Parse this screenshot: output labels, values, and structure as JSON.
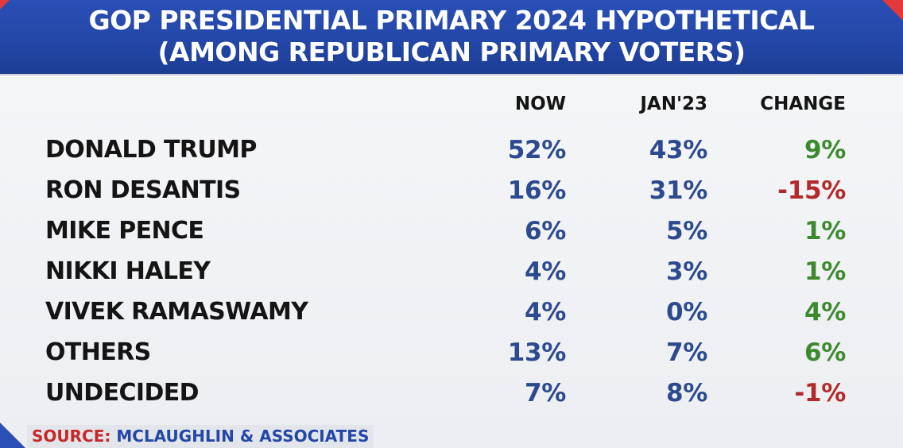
{
  "chart_data": {
    "type": "table",
    "title_line1": "GOP PRESIDENTIAL PRIMARY 2024 HYPOTHETICAL",
    "title_line2": "(AMONG REPUBLICAN PRIMARY VOTERS)",
    "columns": [
      "NOW",
      "JAN'23",
      "CHANGE"
    ],
    "rows": [
      {
        "name": "DONALD TRUMP",
        "now": "52%",
        "jan": "43%",
        "change": "9%",
        "now_value": 52,
        "jan_value": 43,
        "change_value": 9
      },
      {
        "name": "RON DESANTIS",
        "now": "16%",
        "jan": "31%",
        "change": "-15%",
        "now_value": 16,
        "jan_value": 31,
        "change_value": -15
      },
      {
        "name": "MIKE PENCE",
        "now": "6%",
        "jan": "5%",
        "change": "1%",
        "now_value": 6,
        "jan_value": 5,
        "change_value": 1
      },
      {
        "name": "NIKKI HALEY",
        "now": "4%",
        "jan": "3%",
        "change": "1%",
        "now_value": 4,
        "jan_value": 3,
        "change_value": 1
      },
      {
        "name": "VIVEK RAMASWAMY",
        "now": "4%",
        "jan": "0%",
        "change": "4%",
        "now_value": 4,
        "jan_value": 0,
        "change_value": 4
      },
      {
        "name": "OTHERS",
        "now": "13%",
        "jan": "7%",
        "change": "6%",
        "now_value": 13,
        "jan_value": 7,
        "change_value": 6
      },
      {
        "name": "UNDECIDED",
        "now": "7%",
        "jan": "8%",
        "change": "-1%",
        "now_value": 7,
        "jan_value": 8,
        "change_value": -1
      }
    ]
  },
  "source": {
    "label": "SOURCE:",
    "value": "MCLAUGHLIN & ASSOCIATES"
  },
  "colors": {
    "header_blue": "#2347a8",
    "value_blue": "#2c4a8f",
    "positive_green": "#3d8a2e",
    "negative_red": "#b32a2a",
    "source_red": "#c62828"
  }
}
